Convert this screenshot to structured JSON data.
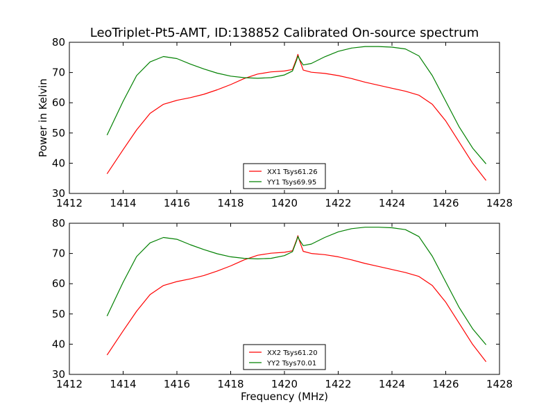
{
  "figure": {
    "title": "LeoTriplet-Pt5-AMT, ID:138852 Calibrated On-source spectrum",
    "xlabel": "Frequency (MHz)",
    "ylabel": "Power in Kelvin"
  },
  "chart_data": [
    {
      "type": "line",
      "title": "LeoTriplet-Pt5-AMT, ID:138852 Calibrated On-source spectrum",
      "xlabel": "",
      "ylabel": "Power in Kelvin",
      "xlim": [
        1412,
        1428
      ],
      "ylim": [
        30,
        80
      ],
      "x_ticks": [
        1412,
        1414,
        1416,
        1418,
        1420,
        1422,
        1424,
        1426,
        1428
      ],
      "y_ticks": [
        30,
        40,
        50,
        60,
        70,
        80
      ],
      "grid": false,
      "legend_position": "bottom-center",
      "x": [
        1413.4,
        1414.0,
        1414.5,
        1415.0,
        1415.5,
        1416.0,
        1416.5,
        1417.0,
        1417.5,
        1418.0,
        1418.5,
        1419.0,
        1419.5,
        1420.0,
        1420.3,
        1420.45,
        1420.5,
        1420.55,
        1420.7,
        1421.0,
        1421.5,
        1422.0,
        1422.5,
        1423.0,
        1423.5,
        1424.0,
        1424.5,
        1425.0,
        1425.5,
        1426.0,
        1426.5,
        1427.0,
        1427.5
      ],
      "series": [
        {
          "name": "XX1 Tsys61.26",
          "color": "#ff0000",
          "values": [
            36.5,
            44.5,
            51.0,
            56.5,
            59.5,
            60.8,
            61.7,
            62.8,
            64.3,
            66.0,
            68.0,
            69.5,
            70.2,
            70.5,
            71.0,
            74.5,
            76.0,
            74.5,
            70.8,
            70.1,
            69.7,
            69.0,
            68.0,
            66.8,
            65.8,
            64.8,
            63.8,
            62.5,
            59.5,
            54.0,
            47.0,
            40.0,
            34.3
          ]
        },
        {
          "name": "YY1 Tsys69.95",
          "color": "#008000",
          "values": [
            49.3,
            60.5,
            69.0,
            73.5,
            75.3,
            74.6,
            72.8,
            71.2,
            69.8,
            68.8,
            68.3,
            68.1,
            68.3,
            69.2,
            70.5,
            74.0,
            75.5,
            74.5,
            72.5,
            73.0,
            75.2,
            77.0,
            78.1,
            78.6,
            78.6,
            78.4,
            77.8,
            75.5,
            69.0,
            60.5,
            52.0,
            45.0,
            39.8
          ]
        }
      ]
    },
    {
      "type": "line",
      "title": "",
      "xlabel": "Frequency (MHz)",
      "ylabel": "",
      "xlim": [
        1412,
        1428
      ],
      "ylim": [
        30,
        80
      ],
      "x_ticks": [
        1412,
        1414,
        1416,
        1418,
        1420,
        1422,
        1424,
        1426,
        1428
      ],
      "y_ticks": [
        30,
        40,
        50,
        60,
        70,
        80
      ],
      "grid": false,
      "legend_position": "bottom-center",
      "x": [
        1413.4,
        1414.0,
        1414.5,
        1415.0,
        1415.5,
        1416.0,
        1416.5,
        1417.0,
        1417.5,
        1418.0,
        1418.5,
        1419.0,
        1419.5,
        1420.0,
        1420.3,
        1420.45,
        1420.5,
        1420.55,
        1420.7,
        1421.0,
        1421.5,
        1422.0,
        1422.5,
        1423.0,
        1423.5,
        1424.0,
        1424.5,
        1425.0,
        1425.5,
        1426.0,
        1426.5,
        1427.0,
        1427.5
      ],
      "series": [
        {
          "name": "XX2 Tsys61.20",
          "color": "#ff0000",
          "values": [
            36.4,
            44.4,
            50.9,
            56.4,
            59.4,
            60.7,
            61.6,
            62.7,
            64.2,
            65.9,
            67.9,
            69.4,
            70.1,
            70.4,
            70.9,
            74.4,
            75.9,
            74.4,
            70.7,
            70.0,
            69.6,
            68.9,
            67.9,
            66.7,
            65.7,
            64.7,
            63.7,
            62.4,
            59.4,
            53.9,
            46.9,
            39.9,
            34.2
          ]
        },
        {
          "name": "YY2 Tsys70.01",
          "color": "#008000",
          "values": [
            49.3,
            60.5,
            69.0,
            73.5,
            75.3,
            74.7,
            72.9,
            71.3,
            69.9,
            68.9,
            68.4,
            68.2,
            68.4,
            69.3,
            70.6,
            74.1,
            75.6,
            74.6,
            72.6,
            73.1,
            75.3,
            77.1,
            78.2,
            78.7,
            78.7,
            78.5,
            77.9,
            75.6,
            69.1,
            60.6,
            52.1,
            45.1,
            39.8
          ]
        }
      ]
    }
  ]
}
